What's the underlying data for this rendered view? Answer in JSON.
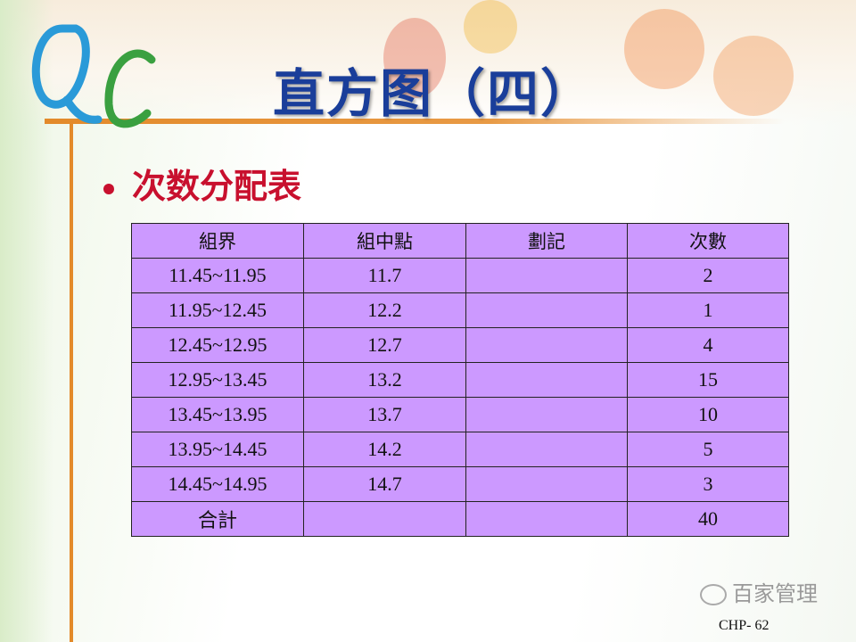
{
  "slide": {
    "logo_text": "QC",
    "title": "直方图（四）",
    "bullet": "次数分配表",
    "footer": "CHP- 62",
    "watermark": "百家管理"
  },
  "table": {
    "headers": [
      "組界",
      "組中點",
      "劃記",
      "次數"
    ],
    "rows": [
      [
        "11.45~11.95",
        "11.7",
        "",
        "2"
      ],
      [
        "11.95~12.45",
        "12.2",
        "",
        "1"
      ],
      [
        "12.45~12.95",
        "12.7",
        "",
        "4"
      ],
      [
        "12.95~13.45",
        "13.2",
        "",
        "15"
      ],
      [
        "13.45~13.95",
        "13.7",
        "",
        "10"
      ],
      [
        "13.95~14.45",
        "14.2",
        "",
        "5"
      ],
      [
        "14.45~14.95",
        "14.7",
        "",
        "3"
      ],
      [
        "合計",
        "",
        "",
        "40"
      ]
    ]
  },
  "colors": {
    "title": "#1a3e9a",
    "bullet": "#c8102e",
    "table_fill": "#cc99ff",
    "accent_line": "#e38a2a"
  }
}
